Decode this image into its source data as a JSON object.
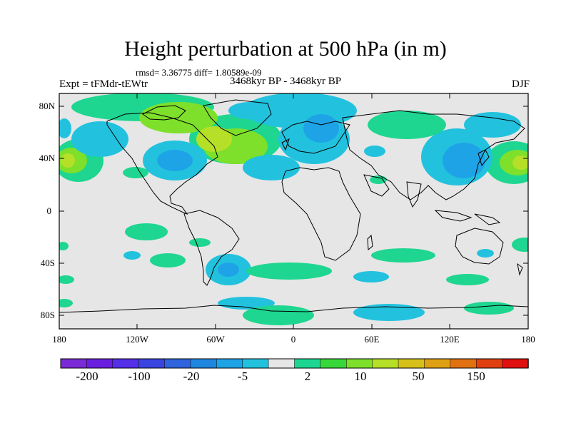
{
  "title": "Height perturbation at 500 hPa (in m)",
  "stats": "rmsd= 3.36775 diff= 1.80589e-09",
  "experiment": "Expt = tFMdr-tEWtr",
  "period": "3468kyr BP - 3468kyr BP",
  "season": "DJF",
  "lat_ticks": [
    "80N",
    "40N",
    "0",
    "40S",
    "80S"
  ],
  "lon_ticks": [
    "180",
    "120W",
    "60W",
    "0",
    "60E",
    "120E",
    "180"
  ],
  "colorbar": {
    "labels": [
      "-200",
      "-100",
      "-20",
      "-5",
      "2",
      "10",
      "50",
      "150"
    ],
    "colors": [
      "#7a2ad6",
      "#6a1fe0",
      "#5530e8",
      "#3a45e0",
      "#2f64dc",
      "#1f86e0",
      "#1ea4e6",
      "#22c2de",
      "#e6e6e6",
      "#1ed690",
      "#38d83a",
      "#7ee02a",
      "#b6e028",
      "#d6c01a",
      "#e0a014",
      "#e07010",
      "#e04010",
      "#e01010"
    ]
  },
  "legend_colors": {
    "ocean_neutral": "#e6e6e6",
    "neg_light": "#22c2de",
    "neg_mid": "#1ea4e6",
    "neg_dark": "#1f86e0",
    "pos_light": "#1ed690",
    "pos_mid": "#7ee02a",
    "pos_strong": "#b6e028"
  }
}
